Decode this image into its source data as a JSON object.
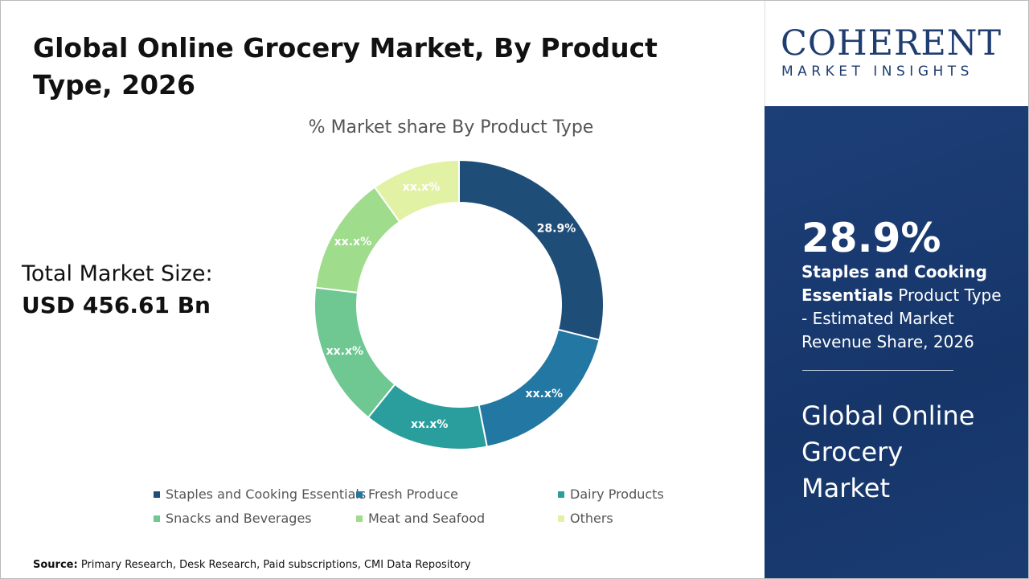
{
  "header": {
    "title": "Global Online Grocery Market, By Product Type, 2026"
  },
  "market_size": {
    "label": "Total Market Size:",
    "value": "USD 456.61 Bn"
  },
  "chart_data": {
    "type": "donut",
    "title": "% Market share By Product Type",
    "categories": [
      "Staples and Cooking Essentials",
      "Fresh Produce",
      "Dairy Products",
      "Snacks and Beverages",
      "Meat and Seafood",
      "Others"
    ],
    "values": [
      28.9,
      18.0,
      13.9,
      16.1,
      13.2,
      9.9
    ],
    "value_labels": [
      "28.9%",
      "xx.x%",
      "xx.x%",
      "xx.x%",
      "xx.x%",
      "xx.x%"
    ],
    "colors": [
      "#1e4d78",
      "#2277a3",
      "#2a9d9d",
      "#6fc791",
      "#9fdc8c",
      "#e2f2a4"
    ]
  },
  "logo": {
    "name": "COHERENT",
    "tagline": "MARKET INSIGHTS"
  },
  "sidebar": {
    "stat": "28.9%",
    "highlight": "Staples and Cooking Essentials",
    "description": " Product Type - Estimated Market Revenue Share, 2026",
    "market": "Global Online Grocery Market"
  },
  "source": {
    "label": "Source:",
    "text": " Primary Research, Desk Research, Paid subscriptions, CMI Data Repository"
  }
}
